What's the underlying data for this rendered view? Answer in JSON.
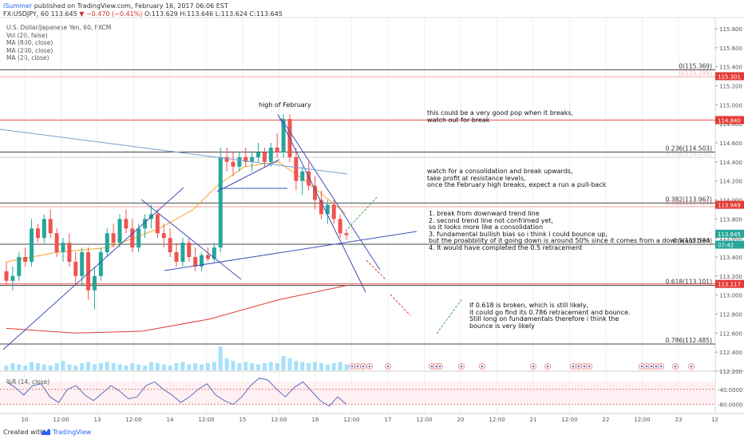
{
  "header": {
    "author": "iSummer",
    "published": " published on TradingView.com, February 16, 2017 06:06 EST",
    "ohlc": "FX:USDJPY, 60  113.645",
    "change": "▼ −0.470 (−0.41%)",
    "ohlc_values": "O:113.629 H:113.646 L:113.624 C:113.645"
  },
  "legend": {
    "symbol": "U.S. Dollar/Japanese Yen, 60, FXCM",
    "items": [
      "Vol (20, false)",
      "MA (800, close)",
      "MA (200, close)",
      "MA (20, close)"
    ]
  },
  "rsi_label": "%R (14, close)",
  "footer": {
    "created": "Created with",
    "brand": "TradingView"
  },
  "annotations": {
    "high_feb": "high of February",
    "pop": [
      "this could be a very good pop when it breaks,",
      "watch out for break"
    ],
    "consolidation": [
      "watch for a consolidation and break upwards,",
      "take profit at resistance levels,",
      "once the February high breaks, expect a run a pull-back"
    ],
    "list": [
      "1. break from downward trend line",
      "2. second trend line not confrimed yet,",
      "so it looks more like a consolidation",
      "3. fundamental bullish bias so i think i could bounce up,",
      "but the proabbility of it going down is around 50% since it comes from a downward tren",
      "4. It would have completed the 0.5 retracement"
    ],
    "fib618": [
      "If 0.618 is broken, which is still likely,",
      "it could go find its 0.786 retracement and bounce.",
      "Still long on fundamentals therefore i think the",
      "bounce is very likely"
    ]
  },
  "chart_data": [
    {
      "type": "candlestick",
      "title": "U.S. Dollar/Japanese Yen, 60, FXCM",
      "ylim": [
        112.2,
        115.8
      ],
      "y_ticks": [
        "115.800",
        "115.600",
        "115.400",
        "115.200",
        "115.000",
        "114.800",
        "114.600",
        "114.400",
        "114.200",
        "114.000",
        "113.800",
        "113.600",
        "113.400",
        "113.200",
        "113.000",
        "112.800",
        "112.600",
        "112.400",
        "112.200"
      ],
      "x_ticks": [
        "10",
        "12:00",
        "13",
        "12:00",
        "14",
        "12:00",
        "15",
        "12:00",
        "16",
        "12:00",
        "17",
        "12:00",
        "20",
        "12:00",
        "21",
        "12:00",
        "22",
        "12:00",
        "23",
        "12"
      ],
      "price_tags": [
        {
          "label": "115.301",
          "value": 115.301,
          "color": "#e53935"
        },
        {
          "label": "114.840",
          "value": 114.84,
          "color": "#e53935"
        },
        {
          "label": "113.949",
          "value": 113.949,
          "color": "#e53935"
        },
        {
          "label": "113.645",
          "value": 113.645,
          "color": "#26a69a"
        },
        {
          "label": "07:42",
          "value": 113.53,
          "color": "#26a69a"
        },
        {
          "label": "113.117",
          "value": 113.117,
          "color": "#e53935"
        }
      ],
      "horizontal_levels": [
        {
          "value": 115.369,
          "color": "#333333",
          "label": "0(115.369)"
        },
        {
          "value": 115.295,
          "color": "#e53935",
          "label": "0(115.295)",
          "faint": true
        },
        {
          "value": 114.84,
          "color": "#e53935",
          "label": ""
        },
        {
          "value": 114.503,
          "color": "#333333",
          "label": "0.236(114.503)"
        },
        {
          "value": 114.448,
          "color": "#999999",
          "label": "0.236(114.448)",
          "faint": true
        },
        {
          "value": 113.967,
          "color": "#333333",
          "label": "0.382(113.967)"
        },
        {
          "value": 113.929,
          "color": "#e53935",
          "label": "0.382(113.929)",
          "faint": true
        },
        {
          "value": 113.534,
          "color": "#333333",
          "label": "0.5(113.534)"
        },
        {
          "value": 113.101,
          "color": "#333333",
          "label": "0.618(113.101)"
        },
        {
          "value": 113.117,
          "color": "#e53935",
          "label": ""
        },
        {
          "value": 112.485,
          "color": "#333333",
          "label": "0.786(112.485)"
        }
      ],
      "candles": [
        [
          113.25,
          113.35,
          113.1,
          113.15
        ],
        [
          113.15,
          113.3,
          113.05,
          113.2
        ],
        [
          113.2,
          113.45,
          113.15,
          113.4
        ],
        [
          113.4,
          113.5,
          113.3,
          113.35
        ],
        [
          113.35,
          113.8,
          113.3,
          113.7
        ],
        [
          113.7,
          113.75,
          113.55,
          113.6
        ],
        [
          113.6,
          113.85,
          113.55,
          113.8
        ],
        [
          113.8,
          113.9,
          113.6,
          113.65
        ],
        [
          113.65,
          113.7,
          113.4,
          113.45
        ],
        [
          113.45,
          113.6,
          113.35,
          113.55
        ],
        [
          113.55,
          113.65,
          113.3,
          113.35
        ],
        [
          113.35,
          113.45,
          113.1,
          113.2
        ],
        [
          113.2,
          113.5,
          113.1,
          113.45
        ],
        [
          113.45,
          113.5,
          112.95,
          113.05
        ],
        [
          113.05,
          113.3,
          112.85,
          113.2
        ],
        [
          113.2,
          113.5,
          113.15,
          113.45
        ],
        [
          113.45,
          113.7,
          113.4,
          113.65
        ],
        [
          113.65,
          113.75,
          113.5,
          113.55
        ],
        [
          113.55,
          113.85,
          113.5,
          113.8
        ],
        [
          113.8,
          113.9,
          113.65,
          113.7
        ],
        [
          113.7,
          113.8,
          113.45,
          113.5
        ],
        [
          113.5,
          113.75,
          113.45,
          113.7
        ],
        [
          113.7,
          113.85,
          113.6,
          113.8
        ],
        [
          113.8,
          113.95,
          113.7,
          113.85
        ],
        [
          113.85,
          113.9,
          113.6,
          113.65
        ],
        [
          113.65,
          113.75,
          113.5,
          113.6
        ],
        [
          113.6,
          113.7,
          113.4,
          113.45
        ],
        [
          113.45,
          113.55,
          113.3,
          113.35
        ],
        [
          113.35,
          113.6,
          113.3,
          113.55
        ],
        [
          113.55,
          113.6,
          113.35,
          113.4
        ],
        [
          113.4,
          113.5,
          113.25,
          113.3
        ],
        [
          113.3,
          113.45,
          113.25,
          113.42
        ],
        [
          113.42,
          113.5,
          113.35,
          113.38
        ],
        [
          113.38,
          113.55,
          113.35,
          113.5
        ],
        [
          113.5,
          114.55,
          113.45,
          114.45
        ],
        [
          114.45,
          114.55,
          114.3,
          114.4
        ],
        [
          114.4,
          114.5,
          114.25,
          114.35
        ],
        [
          114.35,
          114.5,
          114.3,
          114.45
        ],
        [
          114.45,
          114.55,
          114.35,
          114.4
        ],
        [
          114.4,
          114.5,
          114.3,
          114.45
        ],
        [
          114.45,
          114.6,
          114.4,
          114.5
        ],
        [
          114.5,
          114.55,
          114.35,
          114.4
        ],
        [
          114.4,
          114.6,
          114.35,
          114.55
        ],
        [
          114.55,
          114.7,
          114.45,
          114.5
        ],
        [
          114.5,
          114.9,
          114.45,
          114.85
        ],
        [
          114.85,
          114.9,
          114.4,
          114.45
        ],
        [
          114.45,
          114.55,
          114.1,
          114.2
        ],
        [
          114.2,
          114.35,
          114.05,
          114.3
        ],
        [
          114.3,
          114.4,
          114.1,
          114.15
        ],
        [
          114.15,
          114.25,
          113.9,
          114.0
        ],
        [
          114.0,
          114.1,
          113.8,
          113.85
        ],
        [
          113.85,
          114.0,
          113.75,
          113.95
        ],
        [
          113.95,
          114.0,
          113.75,
          113.8
        ],
        [
          113.8,
          113.85,
          113.6,
          113.65
        ],
        [
          113.65,
          113.7,
          113.58,
          113.63
        ]
      ],
      "ma20": [
        [
          0,
          113.35
        ],
        [
          0.15,
          113.45
        ],
        [
          0.3,
          113.5
        ],
        [
          0.45,
          113.7
        ],
        [
          0.55,
          113.9
        ],
        [
          0.62,
          114.15
        ],
        [
          0.7,
          114.35
        ],
        [
          0.8,
          114.4
        ],
        [
          0.88,
          114.2
        ],
        [
          1,
          113.85
        ]
      ],
      "ma200": [
        [
          0,
          112.65
        ],
        [
          0.2,
          112.6
        ],
        [
          0.4,
          112.62
        ],
        [
          0.6,
          112.75
        ],
        [
          0.8,
          112.95
        ],
        [
          1,
          113.1
        ]
      ],
      "volume": [
        0.2,
        0.3,
        0.25,
        0.2,
        0.35,
        0.3,
        0.25,
        0.2,
        0.3,
        0.4,
        0.25,
        0.2,
        0.3,
        0.35,
        0.25,
        0.3,
        0.35,
        0.3,
        0.25,
        0.2,
        0.3,
        0.25,
        0.2,
        0.35,
        0.3,
        0.25,
        0.2,
        0.3,
        0.35,
        0.25,
        0.3,
        0.25,
        0.3,
        0.35,
        1.0,
        0.5,
        0.4,
        0.3,
        0.35,
        0.3,
        0.25,
        0.3,
        0.35,
        0.3,
        0.6,
        0.5,
        0.4,
        0.35,
        0.3,
        0.35,
        0.3,
        0.25,
        0.3,
        0.35,
        0.25
      ]
    },
    {
      "type": "line",
      "title": "%R (14, close)",
      "ylim": [
        -100,
        0
      ],
      "y_ticks": [
        "-40.0000",
        "-80.0000"
      ],
      "values": [
        -20,
        -35,
        -55,
        -30,
        -25,
        -60,
        -75,
        -40,
        -30,
        -55,
        -70,
        -50,
        -30,
        -45,
        -65,
        -60,
        -30,
        -20,
        -40,
        -55,
        -75,
        -60,
        -40,
        -25,
        -55,
        -70,
        -80,
        -60,
        -30,
        -10,
        -15,
        -40,
        -60,
        -35,
        -20,
        -45,
        -70,
        -85,
        -60,
        -80
      ]
    }
  ]
}
